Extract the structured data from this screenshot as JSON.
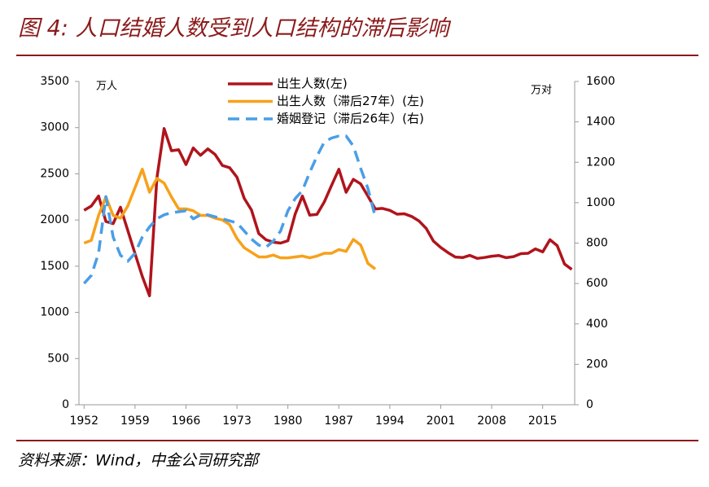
{
  "chart_data": {
    "type": "line",
    "title": "图 4: 人口结婚人数受到人口结构的滞后影响",
    "source": "资料来源：Wind，中金公司研究部",
    "ylabel": "万人",
    "y2label": "万对",
    "xlim": [
      1951.3,
      2019.4
    ],
    "xticks": [
      1952,
      1959,
      1966,
      1973,
      1980,
      1987,
      1994,
      2001,
      2008,
      2015
    ],
    "ylim": [
      0,
      3500
    ],
    "yticks": [
      0,
      500,
      1000,
      1500,
      2000,
      2500,
      3000,
      3500
    ],
    "y2lim": [
      0,
      1600
    ],
    "y2ticks": [
      0,
      200,
      400,
      600,
      800,
      1000,
      1200,
      1400,
      1600
    ],
    "grid": false,
    "legend": "top",
    "series": [
      {
        "name": "出生人数(左)",
        "color": "#b0141c",
        "axis": "y",
        "dash": false,
        "x": [
          1952,
          1953,
          1954,
          1955,
          1956,
          1957,
          1958,
          1959,
          1960,
          1961,
          1962,
          1963,
          1964,
          1965,
          1966,
          1967,
          1968,
          1969,
          1970,
          1971,
          1972,
          1973,
          1974,
          1975,
          1976,
          1977,
          1978,
          1979,
          1980,
          1981,
          1982,
          1983,
          1984,
          1985,
          1986,
          1987,
          1988,
          1989,
          1990,
          1991,
          1992,
          1993,
          1994,
          1995,
          1996,
          1997,
          1998,
          1999,
          2000,
          2001,
          2002,
          2003,
          2004,
          2005,
          2006,
          2007,
          2008,
          2009,
          2010,
          2011,
          2012,
          2013,
          2014,
          2015,
          2016,
          2017,
          2018,
          2019
        ],
        "values": [
          2105,
          2151,
          2260,
          1984,
          1961,
          2138,
          1889,
          1635,
          1389,
          1180,
          2451,
          2990,
          2750,
          2760,
          2600,
          2780,
          2700,
          2770,
          2710,
          2590,
          2566,
          2463,
          2235,
          2109,
          1853,
          1786,
          1760,
          1750,
          1776,
          2064,
          2260,
          2052,
          2060,
          2196,
          2374,
          2550,
          2300,
          2440,
          2391,
          2258,
          2119,
          2126,
          2104,
          2063,
          2067,
          2038,
          1991,
          1909,
          1771,
          1702,
          1647,
          1599,
          1593,
          1617,
          1584,
          1594,
          1608,
          1615,
          1592,
          1604,
          1635,
          1640,
          1687,
          1655,
          1786,
          1723,
          1523,
          1465
        ]
      },
      {
        "name": "出生人数（滞后27年）(左)",
        "color": "#f7a11a",
        "axis": "y",
        "dash": false,
        "x": [
          1952,
          1953,
          1954,
          1955,
          1956,
          1957,
          1958,
          1959,
          1960,
          1961,
          1962,
          1963,
          1964,
          1965,
          1966,
          1967,
          1968,
          1969,
          1970,
          1971,
          1972,
          1973,
          1974,
          1975,
          1976,
          1977,
          1978,
          1979,
          1980,
          1981,
          1982,
          1983,
          1984,
          1985,
          1986,
          1987,
          1988,
          1989,
          1990,
          1991,
          1992
        ],
        "values": [
          1750,
          1780,
          2050,
          2250,
          2050,
          2020,
          2150,
          2350,
          2550,
          2300,
          2450,
          2400,
          2250,
          2120,
          2120,
          2100,
          2050,
          2050,
          2020,
          2000,
          1950,
          1800,
          1700,
          1650,
          1600,
          1600,
          1620,
          1590,
          1590,
          1600,
          1610,
          1590,
          1610,
          1640,
          1640,
          1680,
          1660,
          1790,
          1730,
          1530,
          1470
        ]
      },
      {
        "name": "婚姻登记（滞后26年）(右)",
        "color": "#4a9ee6",
        "axis": "y2",
        "dash": true,
        "x": [
          1952,
          1953,
          1954,
          1955,
          1956,
          1957,
          1958,
          1959,
          1960,
          1961,
          1962,
          1963,
          1964,
          1965,
          1966,
          1967,
          1968,
          1969,
          1970,
          1971,
          1972,
          1973,
          1974,
          1975,
          1976,
          1977,
          1978,
          1979,
          1980,
          1981,
          1982,
          1983,
          1984,
          1985,
          1986,
          1987,
          1988,
          1989,
          1990,
          1991,
          1992
        ],
        "values": [
          600,
          640,
          750,
          1030,
          830,
          740,
          710,
          750,
          830,
          880,
          920,
          940,
          950,
          955,
          960,
          920,
          940,
          940,
          930,
          920,
          910,
          900,
          860,
          820,
          790,
          780,
          810,
          860,
          960,
          1020,
          1060,
          1150,
          1230,
          1300,
          1320,
          1330,
          1330,
          1280,
          1170,
          1070,
          930
        ]
      }
    ]
  }
}
